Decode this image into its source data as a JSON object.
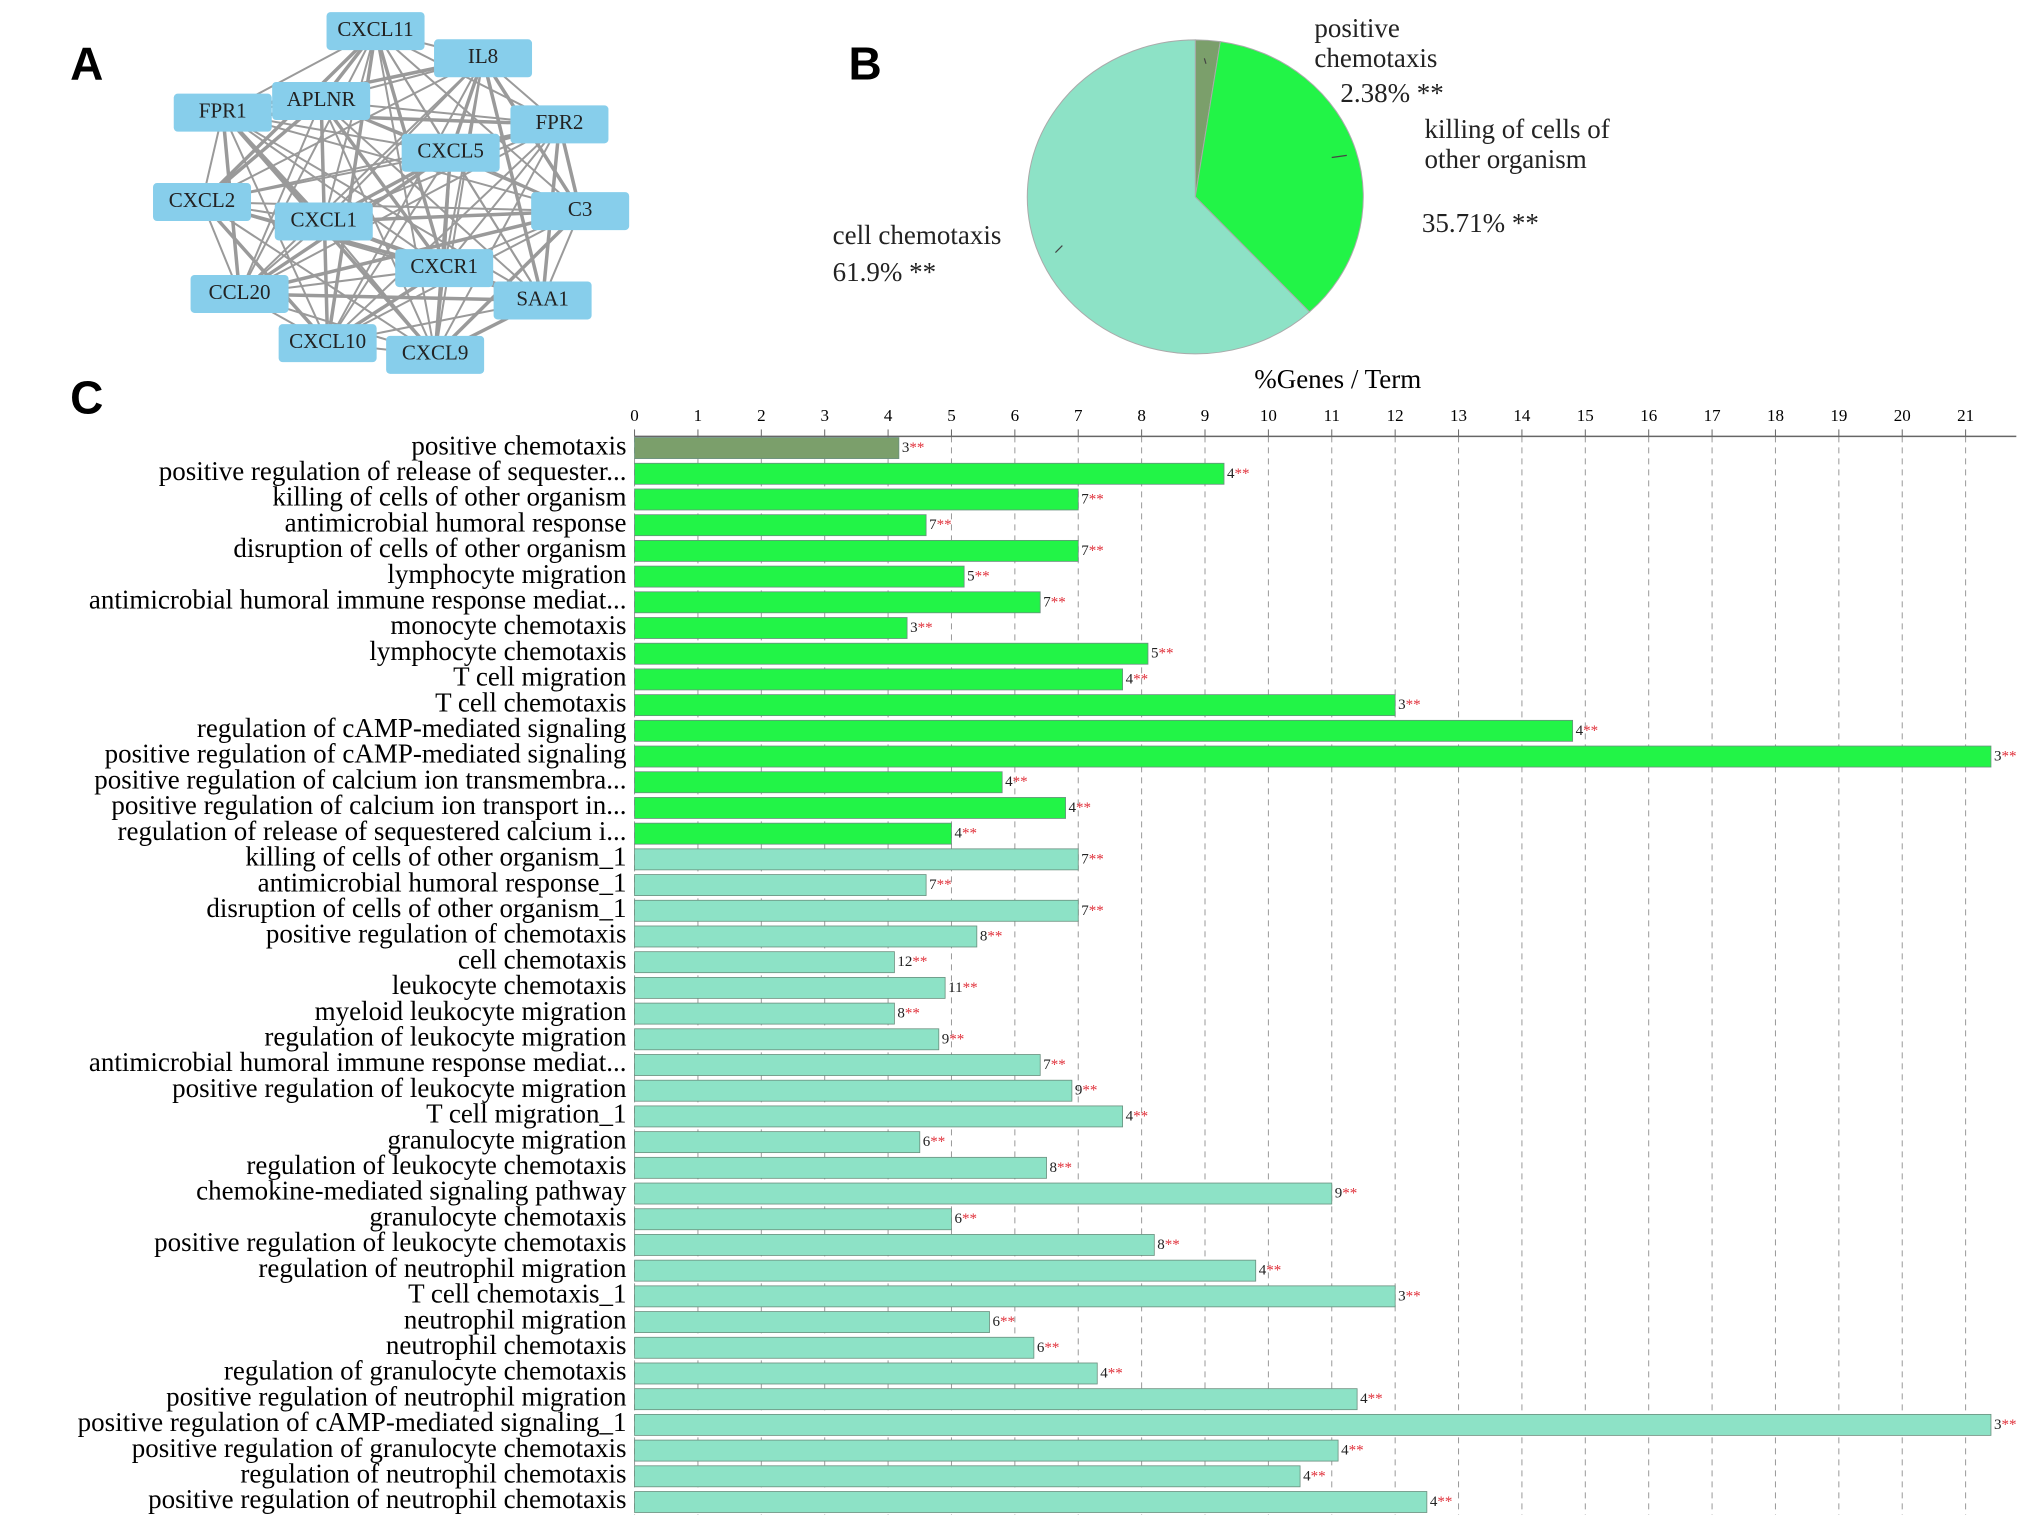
{
  "panel_labels": [
    "A",
    "B",
    "C"
  ],
  "network": {
    "nodes": [
      "CXCL11",
      "IL8",
      "FPR1",
      "APLNR",
      "FPR2",
      "CXCL5",
      "CXCL2",
      "CXCL1",
      "C3",
      "CXCR1",
      "CCL20",
      "SAA1",
      "CXCL10",
      "CXCL9"
    ]
  },
  "chart_data": [
    {
      "type": "pie",
      "labels": [
        "positive chemotaxis",
        "killing of cells of other organism",
        "cell chemotaxis"
      ],
      "values": [
        2.38,
        35.71,
        61.9
      ],
      "value_labels": [
        "2.38% **",
        "35.71% **",
        "61.9% **"
      ],
      "colors": [
        "#7b9f6b",
        "#22f447",
        "#8de2c6"
      ]
    },
    {
      "type": "bar",
      "x_label": "%Genes / Term",
      "categories": [
        "positive chemotaxis",
        "positive regulation of release of sequester...",
        "killing of cells of other organism",
        "antimicrobial humoral response",
        "disruption of cells of other organism",
        "lymphocyte migration",
        "antimicrobial humoral immune response mediat...",
        "monocyte chemotaxis",
        "lymphocyte chemotaxis",
        "T cell migration",
        "T cell chemotaxis",
        "regulation of cAMP-mediated signaling",
        "positive regulation of cAMP-mediated signaling",
        "positive regulation of calcium ion transmembra...",
        "positive regulation of calcium ion transport in...",
        "regulation of release of sequestered calcium i...",
        "killing of cells of other organism_1",
        "antimicrobial humoral response_1",
        "disruption of cells of other organism_1",
        "positive regulation of chemotaxis",
        "cell chemotaxis",
        "leukocyte chemotaxis",
        "myeloid leukocyte migration",
        "regulation of leukocyte migration",
        "antimicrobial humoral immune response mediat...",
        "positive regulation of leukocyte migration",
        "T cell migration_1",
        "granulocyte migration",
        "regulation of leukocyte chemotaxis",
        "chemokine-mediated signaling pathway",
        "granulocyte chemotaxis",
        "positive regulation of leukocyte chemotaxis",
        "regulation of neutrophil migration",
        "T cell chemotaxis_1",
        "neutrophil migration",
        "neutrophil chemotaxis",
        "regulation of granulocyte chemotaxis",
        "positive regulation of neutrophil migration",
        "positive regulation of cAMP-mediated signaling_1",
        "positive regulation of granulocyte chemotaxis",
        "regulation of neutrophil chemotaxis",
        "positive regulation of neutrophil chemotaxis"
      ],
      "values": [
        4.17,
        9.3,
        7.0,
        4.6,
        7.0,
        5.2,
        6.4,
        4.3,
        8.1,
        7.7,
        12.0,
        14.8,
        21.4,
        5.8,
        6.8,
        5.0,
        7.0,
        4.6,
        7.0,
        5.4,
        4.1,
        4.9,
        4.1,
        4.8,
        6.4,
        6.9,
        7.7,
        4.5,
        6.5,
        11.0,
        5.0,
        8.2,
        9.8,
        12.0,
        5.6,
        6.3,
        7.3,
        11.4,
        21.4,
        11.1,
        10.5,
        12.5
      ],
      "counts": [
        3,
        4,
        7,
        7,
        7,
        5,
        7,
        3,
        5,
        4,
        3,
        4,
        3,
        4,
        4,
        4,
        7,
        7,
        7,
        8,
        12,
        11,
        8,
        9,
        7,
        9,
        4,
        6,
        8,
        9,
        6,
        8,
        4,
        3,
        6,
        6,
        4,
        4,
        3,
        4,
        4,
        4
      ],
      "count_suffix": "**",
      "colors": [
        "#7b9f6b",
        "#22f447",
        "#22f447",
        "#22f447",
        "#22f447",
        "#22f447",
        "#22f447",
        "#22f447",
        "#22f447",
        "#22f447",
        "#22f447",
        "#22f447",
        "#22f447",
        "#22f447",
        "#22f447",
        "#22f447",
        "#8de2c6",
        "#8de2c6",
        "#8de2c6",
        "#8de2c6",
        "#8de2c6",
        "#8de2c6",
        "#8de2c6",
        "#8de2c6",
        "#8de2c6",
        "#8de2c6",
        "#8de2c6",
        "#8de2c6",
        "#8de2c6",
        "#8de2c6",
        "#8de2c6",
        "#8de2c6",
        "#8de2c6",
        "#8de2c6",
        "#8de2c6",
        "#8de2c6",
        "#8de2c6",
        "#8de2c6",
        "#8de2c6",
        "#8de2c6",
        "#8de2c6",
        "#8de2c6"
      ],
      "xlim": [
        0,
        21.8
      ],
      "xticks": [
        0,
        1,
        2,
        3,
        4,
        5,
        6,
        7,
        8,
        9,
        10,
        11,
        12,
        13,
        14,
        15,
        16,
        17,
        18,
        19,
        20,
        21
      ],
      "grid": true
    }
  ]
}
